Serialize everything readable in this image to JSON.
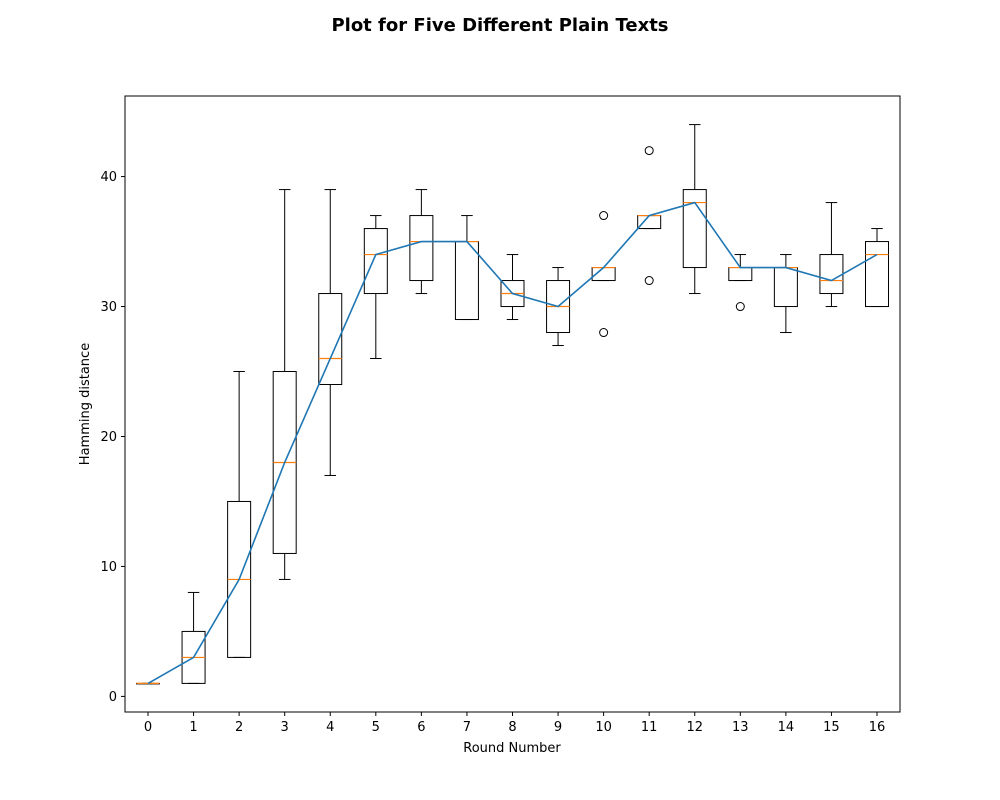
{
  "chart_data": {
    "type": "box",
    "title": "Plot for Five Different Plain Texts",
    "xlabel": "Round Number",
    "ylabel": "Hamming distance",
    "ylim": [
      -1.2,
      46.2
    ],
    "yticks": [
      0,
      10,
      20,
      30,
      40
    ],
    "categories": [
      "0",
      "1",
      "2",
      "3",
      "4",
      "5",
      "6",
      "7",
      "8",
      "9",
      "10",
      "11",
      "12",
      "13",
      "14",
      "15",
      "16"
    ],
    "boxes": [
      {
        "whislo": 1,
        "q1": 1,
        "med": 1,
        "q3": 1,
        "whishi": 1,
        "fliers": []
      },
      {
        "whislo": 1,
        "q1": 1,
        "med": 3,
        "q3": 5,
        "whishi": 8,
        "fliers": []
      },
      {
        "whislo": 3,
        "q1": 3,
        "med": 9,
        "q3": 15,
        "whishi": 25,
        "fliers": []
      },
      {
        "whislo": 9,
        "q1": 11,
        "med": 18,
        "q3": 25,
        "whishi": 39,
        "fliers": []
      },
      {
        "whislo": 17,
        "q1": 24,
        "med": 26,
        "q3": 31,
        "whishi": 39,
        "fliers": []
      },
      {
        "whislo": 26,
        "q1": 31,
        "med": 34,
        "q3": 36,
        "whishi": 37,
        "fliers": []
      },
      {
        "whislo": 31,
        "q1": 32,
        "med": 35,
        "q3": 37,
        "whishi": 39,
        "fliers": []
      },
      {
        "whislo": 29,
        "q1": 29,
        "med": 35,
        "q3": 35,
        "whishi": 37,
        "fliers": []
      },
      {
        "whislo": 29,
        "q1": 30,
        "med": 31,
        "q3": 32,
        "whishi": 34,
        "fliers": []
      },
      {
        "whislo": 27,
        "q1": 28,
        "med": 30,
        "q3": 32,
        "whishi": 33,
        "fliers": []
      },
      {
        "whislo": 32,
        "q1": 32,
        "med": 33,
        "q3": 33,
        "whishi": 33,
        "fliers": [
          37,
          28
        ]
      },
      {
        "whislo": 36,
        "q1": 36,
        "med": 37,
        "q3": 37,
        "whishi": 37,
        "fliers": [
          42,
          32
        ]
      },
      {
        "whislo": 31,
        "q1": 33,
        "med": 38,
        "q3": 39,
        "whishi": 44,
        "fliers": []
      },
      {
        "whislo": 32,
        "q1": 32,
        "med": 33,
        "q3": 33,
        "whishi": 34,
        "fliers": [
          30
        ]
      },
      {
        "whislo": 28,
        "q1": 30,
        "med": 33,
        "q3": 33,
        "whishi": 34,
        "fliers": []
      },
      {
        "whislo": 30,
        "q1": 31,
        "med": 32,
        "q3": 34,
        "whishi": 38,
        "fliers": []
      },
      {
        "whislo": 30,
        "q1": 30,
        "med": 34,
        "q3": 35,
        "whishi": 36,
        "fliers": []
      }
    ],
    "line": {
      "values": [
        1,
        3,
        9,
        18,
        26,
        34,
        35,
        35,
        31,
        30,
        33,
        37,
        38,
        33,
        33,
        32,
        34
      ]
    },
    "colors": {
      "box": "#000000",
      "median": "#ff7f0e",
      "line": "#1f77b4"
    },
    "grid": false,
    "legend": "none"
  }
}
